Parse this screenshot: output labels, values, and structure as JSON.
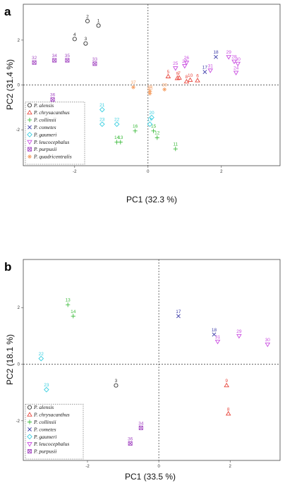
{
  "species_colors": {
    "alensis": "#333333",
    "chrysacanthus": "#e8463c",
    "collinsii": "#3dbb3d",
    "cometes": "#3b3ba8",
    "gaumeri": "#39cfe0",
    "leucocephalus": "#c94be0",
    "purpusii": "#a64dc4",
    "quadricentralis": "#f5a36b"
  },
  "legend_entries": [
    {
      "key": "alensis",
      "label": "P. alensis",
      "marker": "circle"
    },
    {
      "key": "chrysacanthus",
      "label": "P. chrysacanthus",
      "marker": "triangle"
    },
    {
      "key": "collinsii",
      "label": "P. collinsii",
      "marker": "plus"
    },
    {
      "key": "cometes",
      "label": "P. cometes",
      "marker": "x"
    },
    {
      "key": "gaumeri",
      "label": "P. gaumeri",
      "marker": "diamond"
    },
    {
      "key": "leucocephalus",
      "label": "P. leucocephalus",
      "marker": "triangle-down"
    },
    {
      "key": "purpusii",
      "label": "P. purpusii",
      "marker": "boxed-x"
    },
    {
      "key": "quadricentralis",
      "label": "P. quadricentralis",
      "marker": "star"
    }
  ],
  "chart_data": [
    {
      "type": "scatter",
      "panel_label": "a",
      "xlabel": "PC1 (32.3 %)",
      "ylabel": "PC2 (31.4 %)",
      "xlim": [
        -3.4,
        3.6
      ],
      "ylim": [
        -3.6,
        3.6
      ],
      "xticks": [
        -2,
        0,
        2
      ],
      "yticks": [
        -2,
        0,
        2
      ],
      "grid": false,
      "reference_lines": {
        "x": 0,
        "y": 0
      },
      "legend_position": "bottom-left",
      "legend_keys": [
        "alensis",
        "chrysacanthus",
        "collinsii",
        "cometes",
        "gaumeri",
        "leucocephalus",
        "purpusii",
        "quadricentralis"
      ],
      "points": [
        {
          "label": "1",
          "species": "alensis",
          "x": -1.35,
          "y": 2.65
        },
        {
          "label": "2",
          "species": "alensis",
          "x": -1.65,
          "y": 2.85
        },
        {
          "label": "3",
          "species": "alensis",
          "x": -1.7,
          "y": 1.85
        },
        {
          "label": "4",
          "species": "alensis",
          "x": -2.0,
          "y": 2.05
        },
        {
          "label": "5",
          "species": "chrysacanthus",
          "x": 0.55,
          "y": 0.38
        },
        {
          "label": "6",
          "species": "chrysacanthus",
          "x": 1.35,
          "y": 0.2
        },
        {
          "label": "7",
          "species": "chrysacanthus",
          "x": 0.85,
          "y": 0.32
        },
        {
          "label": "8",
          "species": "chrysacanthus",
          "x": 1.05,
          "y": 0.15
        },
        {
          "label": "9",
          "species": "chrysacanthus",
          "x": 0.8,
          "y": 0.3
        },
        {
          "label": "10",
          "species": "chrysacanthus",
          "x": 1.15,
          "y": 0.22
        },
        {
          "label": "11",
          "species": "collinsii",
          "x": 0.75,
          "y": -2.85
        },
        {
          "label": "12",
          "species": "collinsii",
          "x": 0.25,
          "y": -2.35
        },
        {
          "label": "13",
          "species": "collinsii",
          "x": -0.75,
          "y": -2.55
        },
        {
          "label": "14",
          "species": "collinsii",
          "x": -0.85,
          "y": -2.55
        },
        {
          "label": "15",
          "species": "collinsii",
          "x": 0.15,
          "y": -2.05
        },
        {
          "label": "16",
          "species": "collinsii",
          "x": -0.35,
          "y": -2.05
        },
        {
          "label": "17",
          "species": "cometes",
          "x": 1.55,
          "y": 0.58
        },
        {
          "label": "18",
          "species": "cometes",
          "x": 1.85,
          "y": 1.25
        },
        {
          "label": "19",
          "species": "gaumeri",
          "x": 0.05,
          "y": -1.75
        },
        {
          "label": "20",
          "species": "gaumeri",
          "x": 0.1,
          "y": -1.45
        },
        {
          "label": "21",
          "species": "gaumeri",
          "x": -1.25,
          "y": -1.1
        },
        {
          "label": "22",
          "species": "gaumeri",
          "x": -0.85,
          "y": -1.75
        },
        {
          "label": "23",
          "species": "gaumeri",
          "x": -1.25,
          "y": -1.75
        },
        {
          "label": "24",
          "species": "leucocephalus",
          "x": 2.4,
          "y": 0.55
        },
        {
          "label": "25",
          "species": "leucocephalus",
          "x": 0.75,
          "y": 0.75
        },
        {
          "label": "26",
          "species": "leucocephalus",
          "x": 1.05,
          "y": 1.0
        },
        {
          "label": "27",
          "species": "leucocephalus",
          "x": 1.0,
          "y": 0.85
        },
        {
          "label": "28",
          "species": "leucocephalus",
          "x": 2.35,
          "y": 1.05
        },
        {
          "label": "29",
          "species": "leucocephalus",
          "x": 2.2,
          "y": 1.25
        },
        {
          "label": "30",
          "species": "leucocephalus",
          "x": 2.45,
          "y": 0.95
        },
        {
          "label": "31",
          "species": "leucocephalus",
          "x": 1.7,
          "y": 0.65
        },
        {
          "label": "32",
          "species": "purpusii",
          "x": -3.1,
          "y": 1.0
        },
        {
          "label": "33",
          "species": "purpusii",
          "x": -1.45,
          "y": 0.95
        },
        {
          "label": "34",
          "species": "purpusii",
          "x": -2.55,
          "y": 1.1
        },
        {
          "label": "35",
          "species": "purpusii",
          "x": -2.2,
          "y": 1.1
        },
        {
          "label": "36",
          "species": "purpusii",
          "x": -2.6,
          "y": -0.65
        },
        {
          "label": "37",
          "species": "quadricentralis",
          "x": -0.4,
          "y": -0.1
        },
        {
          "label": "38",
          "species": "quadricentralis",
          "x": 0.05,
          "y": -0.28
        },
        {
          "label": "39",
          "species": "quadricentralis",
          "x": 0.45,
          "y": -0.2
        },
        {
          "label": "40",
          "species": "quadricentralis",
          "x": 0.05,
          "y": -0.38
        }
      ]
    },
    {
      "type": "scatter",
      "panel_label": "b",
      "xlabel": "PC1 (33.5 %)",
      "ylabel": "PC2 (18.1 %)",
      "xlim": [
        -3.8,
        3.4
      ],
      "ylim": [
        -3.4,
        3.7
      ],
      "xticks": [
        -2,
        0,
        2
      ],
      "yticks": [
        -2,
        0,
        2
      ],
      "grid": false,
      "reference_lines": {
        "x": 0,
        "y": 0
      },
      "legend_position": "bottom-left",
      "legend_keys": [
        "alensis",
        "chrysacanthus",
        "collinsii",
        "cometes",
        "gaumeri",
        "leucocephalus",
        "purpusii"
      ],
      "points": [
        {
          "label": "3",
          "species": "alensis",
          "x": -1.2,
          "y": -0.75
        },
        {
          "label": "8",
          "species": "chrysacanthus",
          "x": 1.95,
          "y": -1.75
        },
        {
          "label": "9",
          "species": "chrysacanthus",
          "x": 1.9,
          "y": -0.75
        },
        {
          "label": "13",
          "species": "collinsii",
          "x": -2.55,
          "y": 2.1
        },
        {
          "label": "14",
          "species": "collinsii",
          "x": -2.4,
          "y": 1.7
        },
        {
          "label": "17",
          "species": "cometes",
          "x": 0.55,
          "y": 1.7
        },
        {
          "label": "18",
          "species": "cometes",
          "x": 1.55,
          "y": 1.05
        },
        {
          "label": "22",
          "species": "gaumeri",
          "x": -3.3,
          "y": 0.2
        },
        {
          "label": "23",
          "species": "gaumeri",
          "x": -3.15,
          "y": -0.9
        },
        {
          "label": "29",
          "species": "leucocephalus",
          "x": 2.25,
          "y": 1.0
        },
        {
          "label": "30",
          "species": "leucocephalus",
          "x": 3.05,
          "y": 0.7
        },
        {
          "label": "31",
          "species": "leucocephalus",
          "x": 1.65,
          "y": 0.8
        },
        {
          "label": "34",
          "species": "purpusii",
          "x": -0.5,
          "y": -2.25
        },
        {
          "label": "36",
          "species": "purpusii",
          "x": -0.8,
          "y": -2.8
        }
      ]
    }
  ]
}
